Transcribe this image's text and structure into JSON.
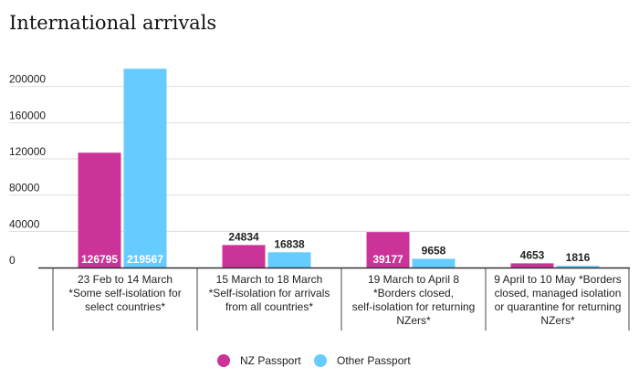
{
  "chart_data": {
    "type": "bar",
    "title": "International arrivals",
    "categories": [
      "23 Feb to 14 March *Some self-isolation for select countries*",
      "15 March to 18 March *Self-isolation for arrivals from all countries*",
      "19 March to April 8 *Borders closed, self-isolation for returning NZers*",
      "9 April to 10 May *Borders closed, managed isolation or quarantine for returning NZers*"
    ],
    "category_lines": [
      [
        "23 Feb to 14 March",
        "*Some self-isolation for",
        "select countries*"
      ],
      [
        "15 March to 18 March",
        "*Self-isolation for arrivals",
        "from all countries*"
      ],
      [
        "19 March to April 8",
        "*Borders closed,",
        "self-isolation for returning",
        "NZers*"
      ],
      [
        "9 April to 10 May *Borders",
        "closed, managed isolation",
        "or quarantine for returning",
        "NZers*"
      ]
    ],
    "series": [
      {
        "name": "NZ Passport",
        "color": "#cc3399",
        "values": [
          126795,
          24834,
          39177,
          4653
        ]
      },
      {
        "name": "Other Passport",
        "color": "#66ccff",
        "values": [
          219567,
          16838,
          9658,
          1816
        ]
      }
    ],
    "yticks": [
      0,
      40000,
      80000,
      120000,
      160000,
      200000
    ],
    "ylim": [
      0,
      240000
    ],
    "xlabel": "",
    "ylabel": "",
    "grid": true,
    "legend": "bottom-center"
  }
}
